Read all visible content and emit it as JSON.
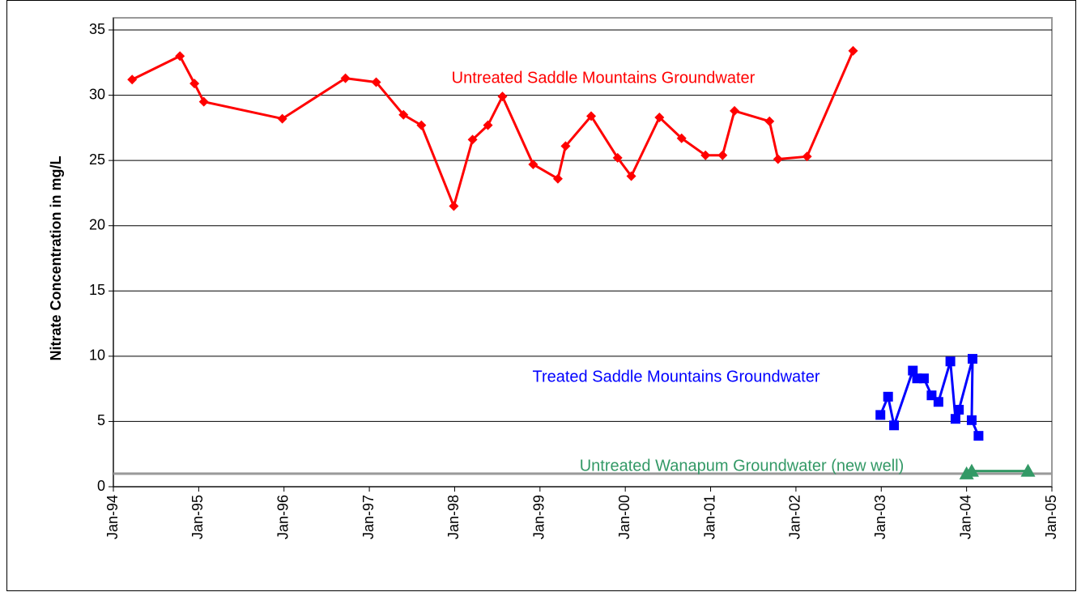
{
  "chart_data": {
    "type": "line",
    "y_label": "Nitrate Concentration in mg/L",
    "xlim": [
      1994,
      2005
    ],
    "ylim": [
      0,
      35
    ],
    "xticks": [
      {
        "value": 1994,
        "label": "Jan-94"
      },
      {
        "value": 1995,
        "label": "Jan-95"
      },
      {
        "value": 1996,
        "label": "Jan-96"
      },
      {
        "value": 1997,
        "label": "Jan-97"
      },
      {
        "value": 1998,
        "label": "Jan-98"
      },
      {
        "value": 1999,
        "label": "Jan-99"
      },
      {
        "value": 2000,
        "label": "Jan-00"
      },
      {
        "value": 2001,
        "label": "Jan-01"
      },
      {
        "value": 2002,
        "label": "Jan-02"
      },
      {
        "value": 2003,
        "label": "Jan-03"
      },
      {
        "value": 2004,
        "label": "Jan-04"
      },
      {
        "value": 2005,
        "label": "Jan-05"
      }
    ],
    "yticks": [
      0,
      5,
      10,
      15,
      20,
      25,
      30,
      35
    ],
    "grid": true,
    "hline": {
      "value": 1,
      "color": "#999999"
    },
    "series": [
      {
        "name": "Untreated Saddle Mountains Groundwater",
        "color": "#ff0000",
        "marker": "diamond",
        "x": [
          1994.22,
          1994.78,
          1994.95,
          1995.06,
          1995.98,
          1996.72,
          1997.08,
          1997.4,
          1997.61,
          1997.99,
          1998.21,
          1998.39,
          1998.56,
          1998.92,
          1999.21,
          1999.3,
          1999.6,
          1999.91,
          2000.07,
          2000.4,
          2000.66,
          2000.94,
          2001.14,
          2001.28,
          2001.69,
          2001.79,
          2002.13,
          2002.67
        ],
        "values": [
          31.2,
          33.0,
          30.9,
          29.5,
          28.2,
          31.3,
          31.0,
          28.5,
          27.7,
          21.5,
          26.6,
          27.7,
          29.9,
          24.7,
          23.6,
          26.1,
          28.4,
          25.2,
          23.8,
          28.3,
          26.7,
          25.4,
          25.4,
          28.8,
          28.0,
          25.1,
          25.3,
          33.4
        ]
      },
      {
        "name": "Treated Saddle Mountains Groundwater",
        "color": "#0000ff",
        "marker": "square",
        "x": [
          2002.99,
          2003.08,
          2003.15,
          2003.37,
          2003.42,
          2003.5,
          2003.59,
          2003.67,
          2003.81,
          2003.87,
          2003.91,
          2004.07,
          2004.06,
          2004.14
        ],
        "values": [
          5.5,
          6.9,
          4.7,
          8.9,
          8.3,
          8.3,
          7.0,
          6.5,
          9.6,
          5.2,
          5.9,
          9.8,
          5.1,
          3.9
        ]
      },
      {
        "name": "Untreated Wanapum Groundwater (new well)",
        "color": "#339966",
        "marker": "triangle",
        "x": [
          2004.0,
          2004.06,
          2004.72
        ],
        "values": [
          1.0,
          1.2,
          1.2
        ]
      }
    ]
  }
}
